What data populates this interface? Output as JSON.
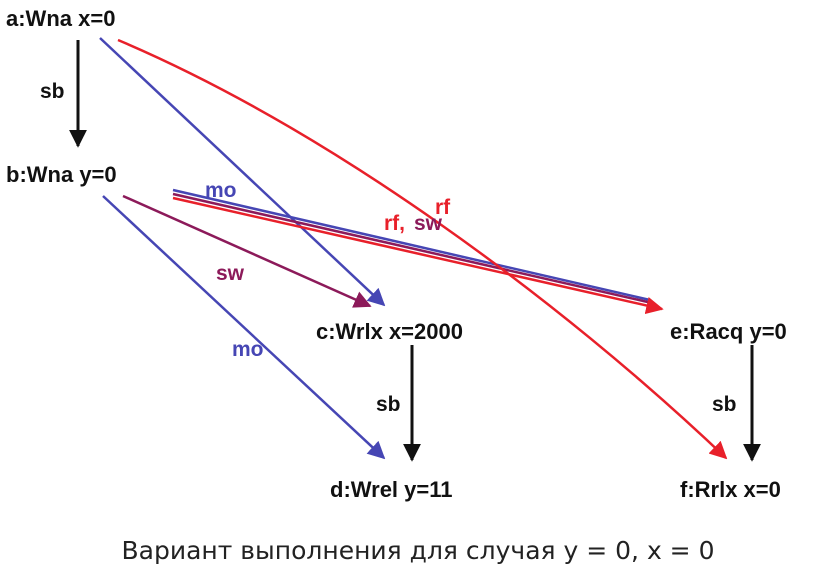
{
  "colors": {
    "sb": "#111111",
    "mo": "#4646b4",
    "rf": "#e8202a",
    "sw": "#8c1a5a"
  },
  "nodes": {
    "a": "a:Wna x=0",
    "b": "b:Wna y=0",
    "c": "c:Wrlx x=2000",
    "d": "d:Wrel y=11",
    "e": "e:Racq y=0",
    "f": "f:Rrlx x=0"
  },
  "edge_labels": {
    "sb_ab": "sb",
    "mo_be": "mo",
    "sw_bc": "sw",
    "mo_bd": "mo",
    "sb_cd": "sb",
    "sb_ef": "sb",
    "rf": "rf",
    "rf_sw": "rf,",
    "sw_be": "sw"
  },
  "caption": "Вариант выполнения для случая y = 0, x = 0"
}
